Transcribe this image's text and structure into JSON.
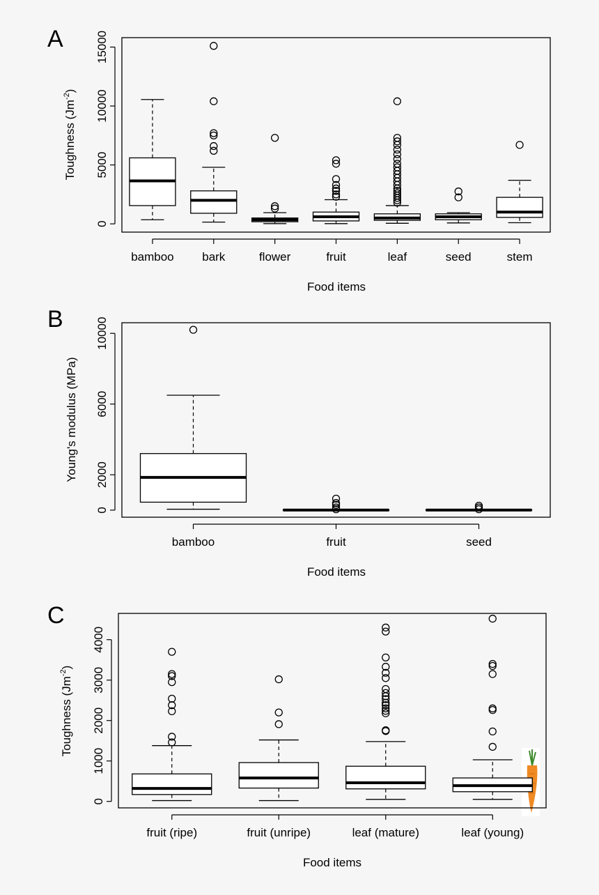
{
  "chart_data": [
    {
      "type": "box",
      "panel_label": "A",
      "title": "",
      "xlabel": "Food items",
      "ylabel": "Toughness (Jm",
      "ylabel_sup": "-2",
      "ylabel_close": ")",
      "ylim": [
        -700,
        15800
      ],
      "yticks": [
        0,
        5000,
        10000,
        15000
      ],
      "yticks_labels": [
        "0",
        "5000",
        "10000",
        "15000"
      ],
      "grid": false,
      "categories": [
        "bamboo",
        "bark",
        "flower",
        "fruit",
        "leaf",
        "seed",
        "stem"
      ],
      "boxes": [
        {
          "whisker_low": 350,
          "q1": 1550,
          "median": 3650,
          "q3": 5600,
          "whisker_high": 10550,
          "outliers": []
        },
        {
          "whisker_low": 150,
          "q1": 900,
          "median": 2000,
          "q3": 2800,
          "whisker_high": 4800,
          "outliers": [
            6200,
            6600,
            7500,
            7700,
            10400,
            15100
          ]
        },
        {
          "whisker_low": 20,
          "q1": 180,
          "median": 350,
          "q3": 500,
          "whisker_high": 950,
          "outliers": [
            1300,
            1500,
            7300
          ]
        },
        {
          "whisker_low": 20,
          "q1": 250,
          "median": 600,
          "q3": 1000,
          "whisker_high": 2050,
          "outliers": [
            2300,
            2500,
            2800,
            3000,
            3300,
            3800,
            5100,
            5400
          ]
        },
        {
          "whisker_low": 50,
          "q1": 300,
          "median": 500,
          "q3": 850,
          "whisker_high": 1550,
          "outliers": [
            1800,
            2000,
            2200,
            2400,
            2600,
            2800,
            3000,
            3300,
            3600,
            3900,
            4200,
            4500,
            4800,
            5100,
            5500,
            5900,
            6300,
            6700,
            7000,
            7300,
            10400
          ]
        },
        {
          "whisker_low": 80,
          "q1": 350,
          "median": 600,
          "q3": 850,
          "whisker_high": 950,
          "outliers": [
            2250,
            2750
          ]
        },
        {
          "whisker_low": 100,
          "q1": 550,
          "median": 1000,
          "q3": 2250,
          "whisker_high": 3700,
          "outliers": [
            6700
          ]
        }
      ]
    },
    {
      "type": "box",
      "panel_label": "B",
      "title": "",
      "xlabel": "Food items",
      "ylabel": "Young's modulus (MPa)",
      "ylim": [
        -400,
        10600
      ],
      "yticks": [
        0,
        2000,
        6000,
        10000
      ],
      "yticks_labels": [
        "0",
        "2000",
        "6000",
        "10000"
      ],
      "grid": false,
      "categories": [
        "bamboo",
        "fruit",
        "seed"
      ],
      "boxes": [
        {
          "whisker_low": 50,
          "q1": 450,
          "median": 1850,
          "q3": 3200,
          "whisker_high": 6500,
          "outliers": [
            10200
          ]
        },
        {
          "whisker_low": 0,
          "q1": 0,
          "median": 5,
          "q3": 15,
          "whisker_high": 30,
          "outliers": [
            50,
            150,
            300,
            400,
            650
          ]
        },
        {
          "whisker_low": 0,
          "q1": 0,
          "median": 5,
          "q3": 15,
          "whisker_high": 30,
          "outliers": [
            50,
            150,
            250
          ]
        }
      ]
    },
    {
      "type": "box",
      "panel_label": "C",
      "title": "",
      "xlabel": "Food items",
      "ylabel": "Toughness (Jm",
      "ylabel_sup": "-2",
      "ylabel_close": ")",
      "ylim": [
        -160,
        4650
      ],
      "yticks": [
        0,
        1000,
        2000,
        3000,
        4000
      ],
      "yticks_labels": [
        "0",
        "1000",
        "2000",
        "3000",
        "4000"
      ],
      "grid": false,
      "categories": [
        "fruit (ripe)",
        "fruit (unripe)",
        "leaf (mature)",
        "leaf (young)"
      ],
      "boxes": [
        {
          "whisker_low": 20,
          "q1": 170,
          "median": 320,
          "q3": 680,
          "whisker_high": 1380,
          "outliers": [
            1460,
            1600,
            2230,
            2380,
            2540,
            2950,
            3100,
            3150,
            3700
          ]
        },
        {
          "whisker_low": 20,
          "q1": 330,
          "median": 580,
          "q3": 960,
          "whisker_high": 1520,
          "outliers": [
            1910,
            2200,
            3020
          ]
        },
        {
          "whisker_low": 50,
          "q1": 310,
          "median": 460,
          "q3": 870,
          "whisker_high": 1480,
          "outliers": [
            1740,
            1760,
            2180,
            2240,
            2300,
            2380,
            2440,
            2530,
            2600,
            2680,
            2780,
            3050,
            3180,
            3330,
            3560,
            4200,
            4300
          ]
        },
        {
          "whisker_low": 50,
          "q1": 240,
          "median": 390,
          "q3": 580,
          "whisker_high": 1030,
          "outliers": [
            1350,
            1730,
            2260,
            2300,
            3150,
            3350,
            3400,
            4520
          ]
        }
      ]
    }
  ]
}
